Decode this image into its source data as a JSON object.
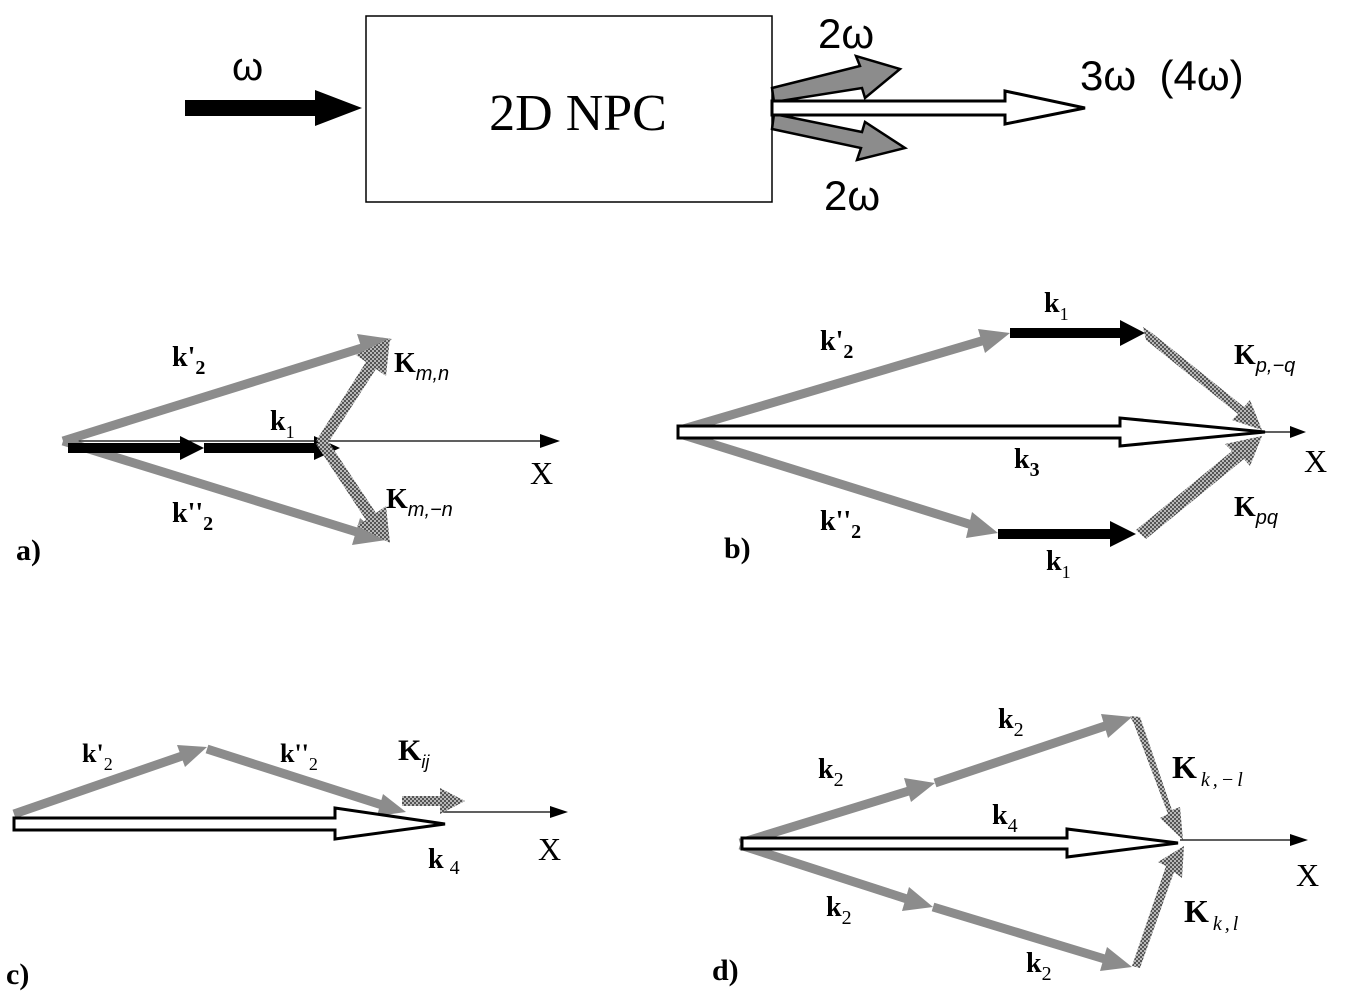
{
  "top": {
    "input_label": "ω",
    "box_label": "2D NPC",
    "output_upper_label": "2ω",
    "output_lower_label": "2ω",
    "output_main_label": "3ω  (4ω)"
  },
  "panel_a": {
    "tag": "a)",
    "k2_prime": {
      "main": "k'",
      "sub": "2"
    },
    "k2_dprime": {
      "main": "k''",
      "sub": "2"
    },
    "k1": {
      "main": "k",
      "sub": "1"
    },
    "K_upper": {
      "main": "K",
      "sub": "m,n"
    },
    "K_lower": {
      "main": "K",
      "sub": "m,−n"
    },
    "axis": "X"
  },
  "panel_b": {
    "tag": "b)",
    "k2_prime": {
      "main": "k'",
      "sub": "2"
    },
    "k2_dprime": {
      "main": "k''",
      "sub": "2"
    },
    "k1_upper": {
      "main": "k",
      "sub": "1"
    },
    "k1_lower": {
      "main": "k",
      "sub": "1"
    },
    "k3": {
      "main": "k",
      "sub": "3"
    },
    "K_upper": {
      "main": "K",
      "sub": "p,−q"
    },
    "K_lower": {
      "main": "K",
      "sub": "pq"
    },
    "axis": "X"
  },
  "panel_c": {
    "tag": "c)",
    "k2_prime": {
      "main": "k'",
      "sub": "2"
    },
    "k2_dprime": {
      "main": "k''",
      "sub": "2"
    },
    "K": {
      "main": "K",
      "sub": "ij"
    },
    "k4": {
      "main": "k",
      "sub": "4"
    },
    "axis": "X"
  },
  "panel_d": {
    "tag": "d)",
    "k2_upper_left": {
      "main": "k",
      "sub": "2"
    },
    "k2_upper_right": {
      "main": "k",
      "sub": "2"
    },
    "k2_lower_left": {
      "main": "k",
      "sub": "2"
    },
    "k2_lower_right": {
      "main": "k",
      "sub": "2"
    },
    "k4": {
      "main": "k",
      "sub": "4"
    },
    "K_upper": {
      "main": "K",
      "sub": "k,−l"
    },
    "K_lower": {
      "main": "K",
      "sub": "k,l"
    },
    "axis": "X"
  },
  "colors": {
    "black": "#000000",
    "gray": "#8c8c8c",
    "hatch": "#6e6e6e",
    "white": "#ffffff"
  }
}
